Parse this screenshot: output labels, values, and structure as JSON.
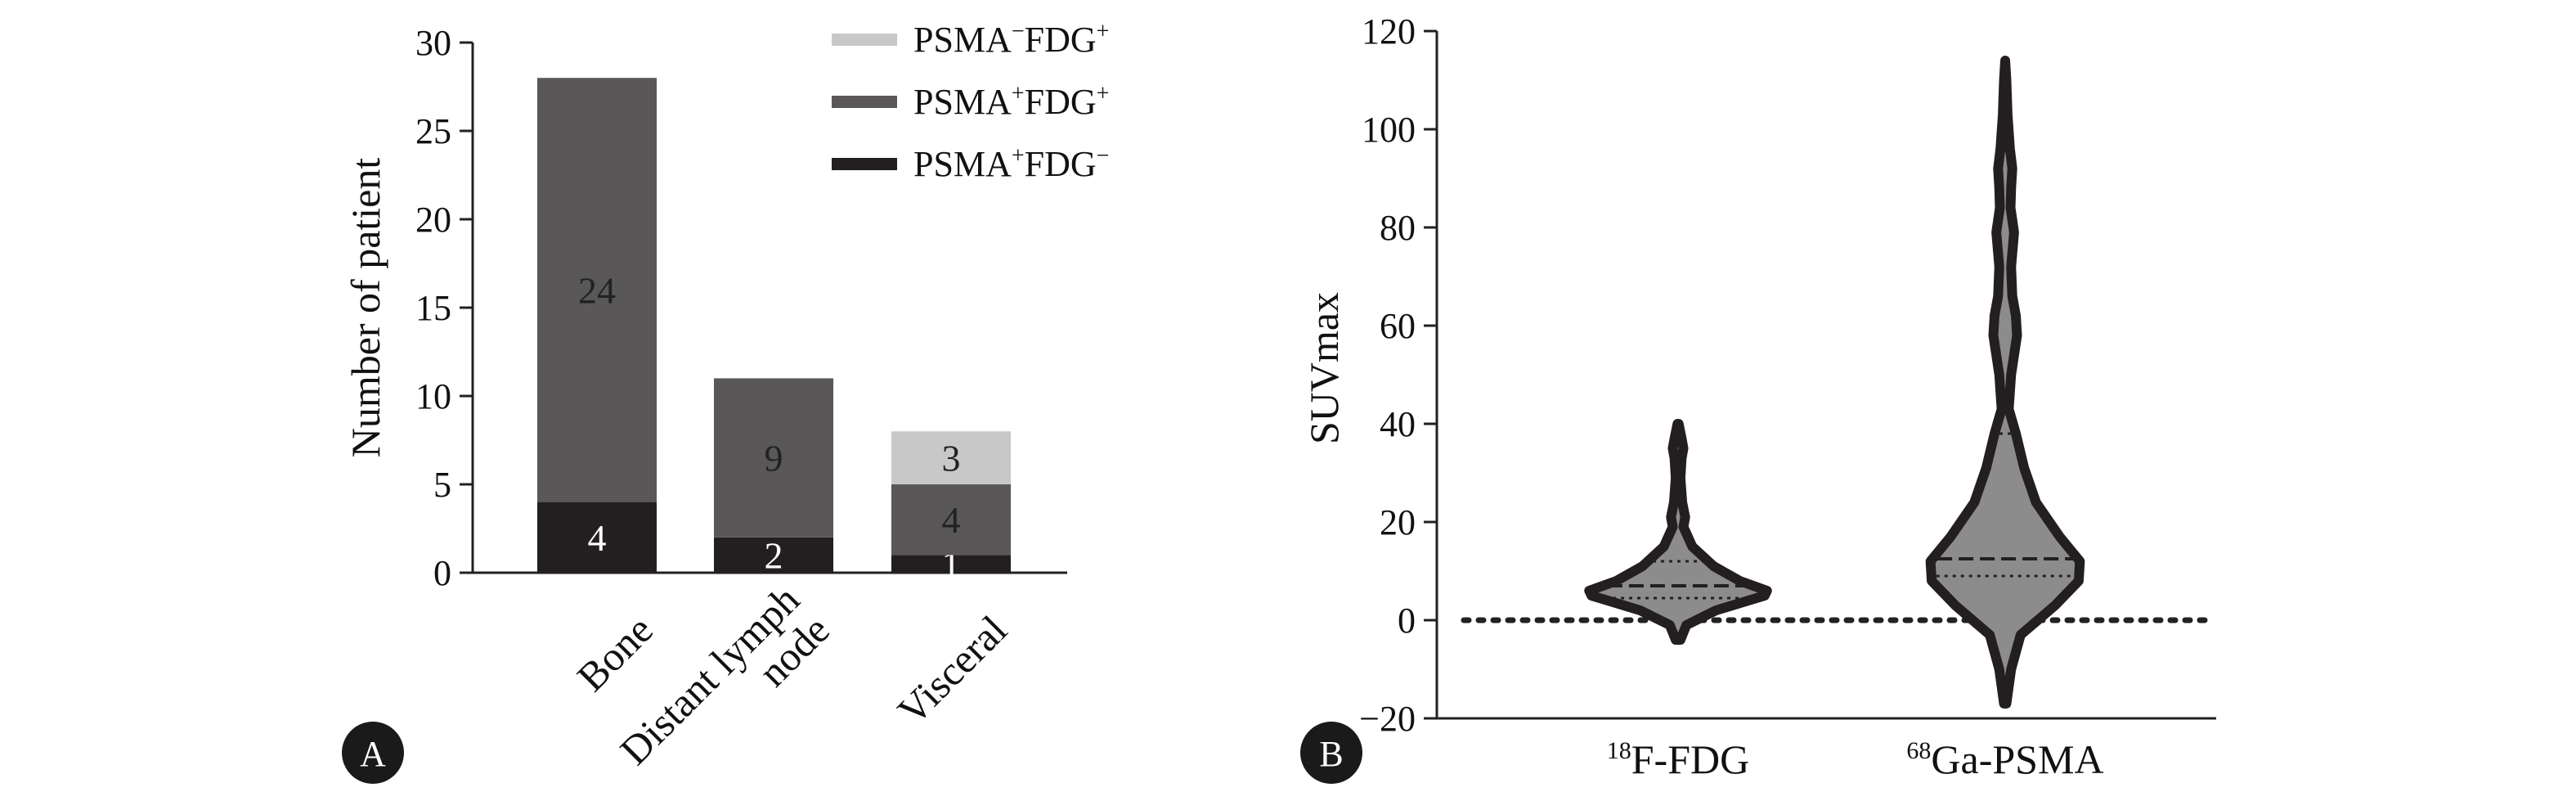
{
  "panels": [
    {
      "letter": "A"
    },
    {
      "letter": "B"
    }
  ],
  "legend": [
    {
      "prefix": "PSMA",
      "sup1": "−",
      "mid": "FDG",
      "sup2": "+",
      "color": "#c8c8c8"
    },
    {
      "prefix": "PSMA",
      "sup1": "+",
      "mid": "FDG",
      "sup2": "+",
      "color": "#595757"
    },
    {
      "prefix": "PSMA",
      "sup1": "+",
      "mid": "FDG",
      "sup2": "−",
      "color": "#231f20"
    }
  ],
  "chart_data": [
    {
      "type": "bar",
      "stacked": true,
      "ylabel": "Number of patient",
      "ylim": [
        0,
        30
      ],
      "yticks": [
        0,
        5,
        10,
        15,
        20,
        25,
        30
      ],
      "categories": [
        "Bone",
        "Distant lymph node",
        "Visceral"
      ],
      "category_lines": [
        [
          "Bone"
        ],
        [
          "Distant lymph",
          "node"
        ],
        [
          "Visceral"
        ]
      ],
      "series": [
        {
          "name": "PSMA+FDG−",
          "color": "#231f20",
          "values": [
            4,
            2,
            1
          ],
          "labels": [
            "4",
            "2",
            "1"
          ]
        },
        {
          "name": "PSMA+FDG+",
          "color": "#595757",
          "values": [
            24,
            9,
            4
          ],
          "labels": [
            "24",
            "9",
            "4"
          ]
        },
        {
          "name": "PSMA−FDG+",
          "color": "#c8c8c8",
          "values": [
            0,
            0,
            3
          ],
          "labels": [
            "",
            "",
            "3"
          ]
        }
      ],
      "grid": false
    },
    {
      "type": "violin",
      "ylabel": "SUVmax",
      "ylim": [
        -20,
        120
      ],
      "yticks": [
        -20,
        0,
        20,
        40,
        60,
        80,
        100,
        120
      ],
      "reference_line_y": 0,
      "groups": [
        {
          "label_sup": "18",
          "label_main": "F-FDG",
          "min": -4,
          "max": 40,
          "median": 7,
          "q1": 4.5,
          "q3": 12,
          "profile": [
            [
              -4,
              0.2
            ],
            [
              -1,
              0.7
            ],
            [
              2,
              3.2
            ],
            [
              5,
              7.3
            ],
            [
              6,
              7.5
            ],
            [
              8,
              5.2
            ],
            [
              11,
              3.0
            ],
            [
              15,
              1.2
            ],
            [
              19,
              0.45
            ],
            [
              21,
              0.6
            ],
            [
              24,
              0.35
            ],
            [
              29,
              0.2
            ],
            [
              33,
              0.3
            ],
            [
              35,
              0.45
            ],
            [
              37,
              0.3
            ],
            [
              40,
              0.05
            ]
          ]
        },
        {
          "label_sup": "68",
          "label_main": "Ga-PSMA",
          "min": -17,
          "max": 114,
          "median": 12.5,
          "q1": 9,
          "q3": 38,
          "profile": [
            [
              -17,
              0.1
            ],
            [
              -10,
              0.5
            ],
            [
              -3,
              1.3
            ],
            [
              3,
              4.2
            ],
            [
              8,
              6.2
            ],
            [
              12,
              6.3
            ],
            [
              17,
              4.6
            ],
            [
              24,
              2.6
            ],
            [
              31,
              1.6
            ],
            [
              38,
              0.9
            ],
            [
              43,
              0.3
            ],
            [
              50,
              0.5
            ],
            [
              58,
              1.0
            ],
            [
              62,
              0.9
            ],
            [
              66,
              0.6
            ],
            [
              72,
              0.5
            ],
            [
              79,
              0.75
            ],
            [
              84,
              0.45
            ],
            [
              88,
              0.5
            ],
            [
              92,
              0.6
            ],
            [
              96,
              0.4
            ],
            [
              103,
              0.2
            ],
            [
              110,
              0.1
            ],
            [
              114,
              0.0
            ]
          ]
        }
      ]
    }
  ]
}
